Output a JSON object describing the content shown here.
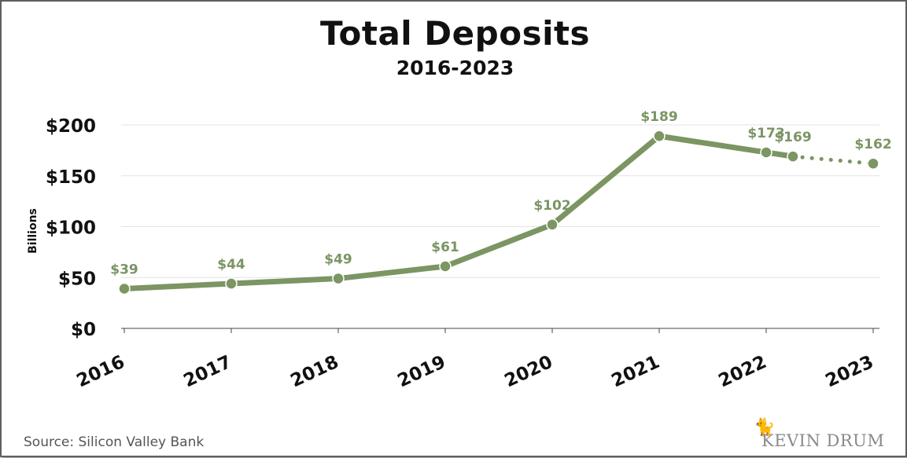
{
  "chart_data": {
    "type": "line",
    "title": "Total Deposits",
    "subtitle": "2016-2023",
    "ylabel": "Billions",
    "xlabel": "",
    "ylim": [
      0,
      200
    ],
    "y_ticks": [
      "$0",
      "$50",
      "$100",
      "$150",
      "$200"
    ],
    "categories": [
      "2016",
      "2017",
      "2018",
      "2019",
      "2020",
      "2021",
      "2022",
      "2023"
    ],
    "points": [
      {
        "x": 2016.0,
        "y": 39,
        "label": "$39",
        "segment": "solid"
      },
      {
        "x": 2017.0,
        "y": 44,
        "label": "$44",
        "segment": "solid"
      },
      {
        "x": 2018.0,
        "y": 49,
        "label": "$49",
        "segment": "solid"
      },
      {
        "x": 2019.0,
        "y": 61,
        "label": "$61",
        "segment": "solid"
      },
      {
        "x": 2020.0,
        "y": 102,
        "label": "$102",
        "segment": "solid"
      },
      {
        "x": 2021.0,
        "y": 189,
        "label": "$189",
        "segment": "solid"
      },
      {
        "x": 2022.0,
        "y": 173,
        "label": "$173",
        "segment": "solid"
      },
      {
        "x": 2022.25,
        "y": 169,
        "label": "$169",
        "segment": "solid"
      },
      {
        "x": 2023.0,
        "y": 162,
        "label": "$162",
        "segment": "dotted"
      }
    ],
    "grid": true,
    "line_color": "#7b9563",
    "label_color": "#7b9563"
  },
  "source": "Source: Silicon Valley Bank",
  "logo": {
    "text": "KEVIN DRUM",
    "icon": "cat-icon"
  }
}
